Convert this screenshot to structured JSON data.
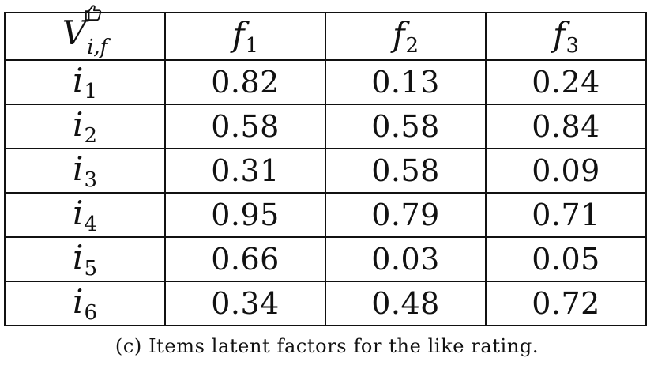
{
  "table": {
    "corner": {
      "symbol": "V",
      "subscript": "i,f",
      "superscript_icon": "thumbs-up-icon"
    },
    "columns": [
      {
        "symbol": "f",
        "subscript": "1"
      },
      {
        "symbol": "f",
        "subscript": "2"
      },
      {
        "symbol": "f",
        "subscript": "3"
      }
    ],
    "rows": [
      {
        "symbol": "i",
        "subscript": "1",
        "values": [
          "0.82",
          "0.13",
          "0.24"
        ]
      },
      {
        "symbol": "i",
        "subscript": "2",
        "values": [
          "0.58",
          "0.58",
          "0.84"
        ]
      },
      {
        "symbol": "i",
        "subscript": "3",
        "values": [
          "0.31",
          "0.58",
          "0.09"
        ]
      },
      {
        "symbol": "i",
        "subscript": "4",
        "values": [
          "0.95",
          "0.79",
          "0.71"
        ]
      },
      {
        "symbol": "i",
        "subscript": "5",
        "values": [
          "0.66",
          "0.03",
          "0.05"
        ]
      },
      {
        "symbol": "i",
        "subscript": "6",
        "values": [
          "0.34",
          "0.48",
          "0.72"
        ]
      }
    ]
  },
  "caption": "(c) Items latent factors for the like rating."
}
